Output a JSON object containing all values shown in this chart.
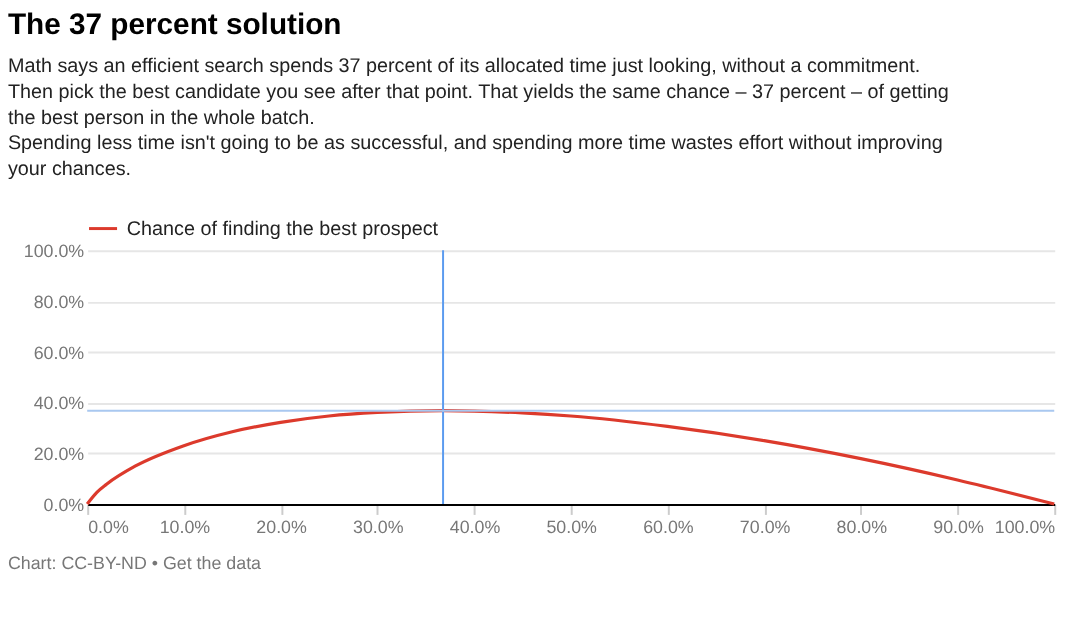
{
  "chart_data": {
    "type": "line",
    "title": "The 37 percent solution",
    "subtitle": "Math says an efficient search spends 37 percent of its allocated time just looking, without a commitment. Then pick the best candidate you see after that point. That yields the same chance – 37 percent – of getting the best person in the whole batch.\n\nSpending less time isn't going to be as successful, and spending more time wastes effort without improving your chances.",
    "series": [
      {
        "name": "Chance of finding the best prospect",
        "color": "#dc3a2c",
        "x": [
          0,
          1,
          2,
          5,
          10,
          15,
          20,
          25,
          30,
          36.8,
          45,
          50,
          60,
          70,
          80,
          90,
          100
        ],
        "values": [
          0,
          4.6,
          7.8,
          15,
          23,
          28.5,
          32.2,
          34.7,
          36.1,
          36.8,
          35.9,
          34.7,
          30.6,
          25,
          17.9,
          9.5,
          0
        ]
      }
    ],
    "xlim": [
      0,
      100
    ],
    "ylim": [
      0,
      100
    ],
    "xticks": [
      {
        "value": 0,
        "label": "0.0%"
      },
      {
        "value": 10,
        "label": "10.0%"
      },
      {
        "value": 20,
        "label": "20.0%"
      },
      {
        "value": 30,
        "label": "30.0%"
      },
      {
        "value": 40,
        "label": "40.0%"
      },
      {
        "value": 50,
        "label": "50.0%"
      },
      {
        "value": 60,
        "label": "60.0%"
      },
      {
        "value": 70,
        "label": "70.0%"
      },
      {
        "value": 80,
        "label": "80.0%"
      },
      {
        "value": 90,
        "label": "90.0%"
      },
      {
        "value": 100,
        "label": "100.0%"
      }
    ],
    "yticks": [
      {
        "value": 0,
        "label": "0.0%"
      },
      {
        "value": 20,
        "label": "20.0%"
      },
      {
        "value": 40,
        "label": "40.0%"
      },
      {
        "value": 60,
        "label": "60.0%"
      },
      {
        "value": 80,
        "label": "80.0%"
      },
      {
        "value": 100,
        "label": "100.0%"
      }
    ],
    "ref_lines": [
      {
        "axis": "x",
        "value": 36.8,
        "color": "#5b9bef"
      },
      {
        "axis": "y",
        "value": 36.8,
        "color": "#a9c8f0"
      }
    ],
    "grid": "y",
    "legend": "top left",
    "marker": "none",
    "line_style": "solid",
    "annotations": [
      "Chart: CC-BY-ND • Get the data"
    ]
  }
}
